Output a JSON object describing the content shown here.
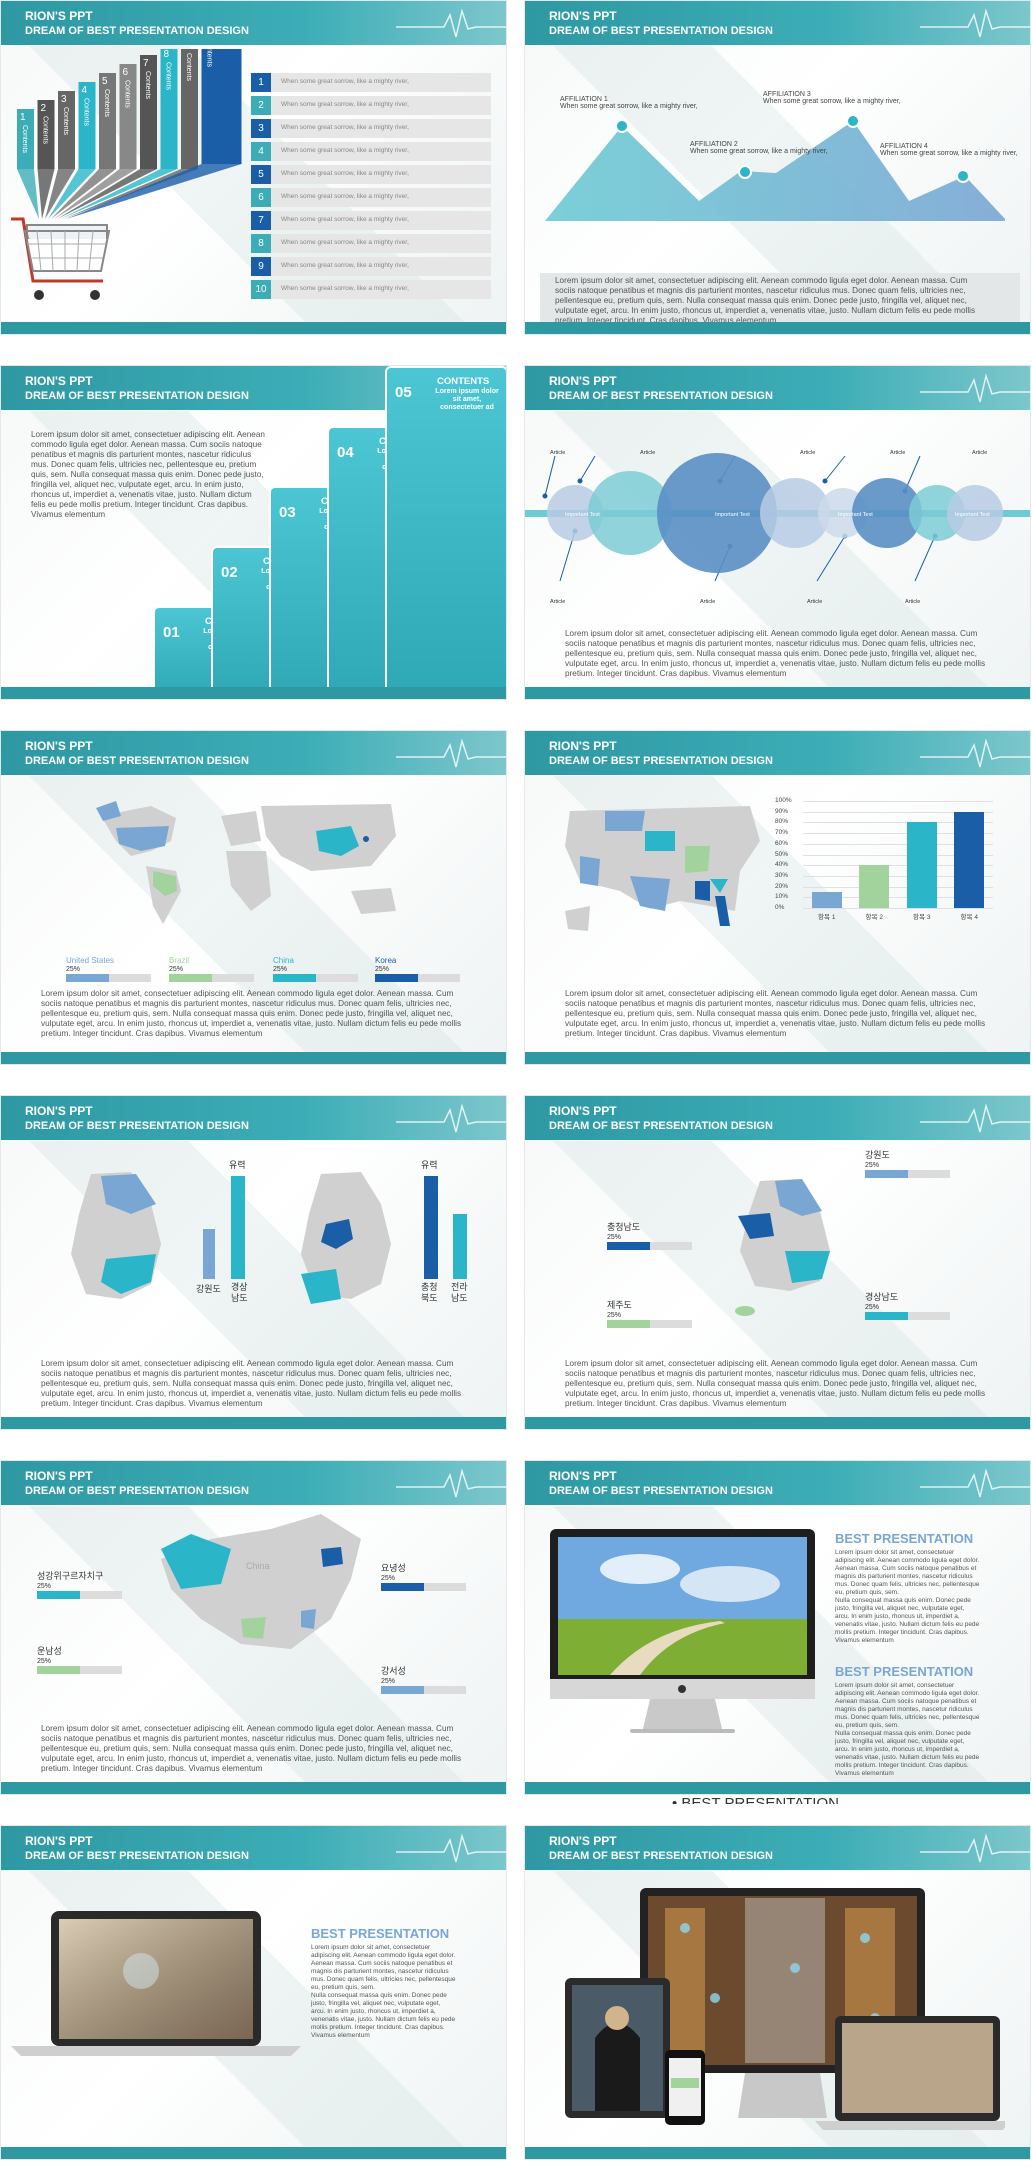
{
  "header": {
    "title": "RION'S PPT",
    "subtitle": "DREAM OF BEST PRESENTATION DESIGN"
  },
  "lorem": {
    "long": "Lorem ipsum dolor sit amet, consectetuer adipiscing elit. Aenean commodo ligula eget dolor. Aenean massa. Cum\nsociis natoque penatibus et magnis dis parturient montes, nascetur ridiculus mus. Donec quam felis, ultricies nec,\npellentesque eu, pretium quis, sem. Nulla consequat massa quis enim. Donec pede justo, fringilla vel, aliquet nec,\nvulputate eget, arcu. In enim justo, rhoncus ut, imperdiet a, venenatis vitae, justo. Nullam dictum felis eu pede mollis\npretium. Integer tincidunt. Cras dapibus. Vivamus elementum",
    "slide3": "Lorem ipsum dolor sit amet, consectetuer adipiscing elit. Aenean\ncommodo ligula eget dolor. Aenean massa. Cum sociis natoque\npenatibus et magnis dis parturient montes, nascetur ridiculus\nmus. Donec quam felis, ultricies nec, pellentesque eu, pretium\nquis, sem. Nulla consequat massa quis enim. Donec pede justo,\nfringilla vel, aliquet nec, vulputate eget, arcu. In enim justo,\nrhoncus ut, imperdiet a, venenatis vitae, justo. Nullam dictum\nfelis eu pede mollis pretium. Integer tincidunt. Cras dapibus.\nVivamus elementum",
    "narrow": "Lorem ipsum dolor sit amet, consectetuer\nadipiscing elit. Aenean commodo ligula eget dolor.\nAenean massa. Cum sociis natoque penatibus et\nmagnis dis parturient montes, nascetur ridiculus\nmus. Donec quam felis, ultricies nec, pellentesque\neu, pretium quis, sem.\nNulla consequat massa quis enim. Donec pede\njusto, fringilla vel, aliquet nec, vulputate eget,\narcu. In enim justo, rhoncus ut, imperdiet a,\nvenenatis vitae, justo. Nullam dictum felis eu pede\nmollis pretium. Integer tincidunt. Cras dapibus.\nVivamus elementum"
  },
  "slide1": {
    "bars": [
      "Contents",
      "Contents",
      "Contents",
      "Contents",
      "Contents",
      "Contents",
      "Contents",
      "Contents",
      "Contents",
      "Contents"
    ],
    "bar_numbers": [
      "1",
      "2",
      "3",
      "4",
      "5",
      "6",
      "7",
      "8",
      "9",
      "10"
    ],
    "rows": [
      "When some great sorrow, like a mighty river,",
      "When some great sorrow, like a mighty river,",
      "When some great sorrow, like a mighty river,",
      "When some great sorrow, like a mighty river,",
      "When some great sorrow, like a mighty river,",
      "When some great sorrow, like a mighty river,",
      "When some great sorrow, like a mighty river,",
      "When some great sorrow, like a mighty river,",
      "When some great sorrow, like a mighty river,",
      "When some great sorrow, like a mighty river,"
    ]
  },
  "slide2": {
    "affiliations": [
      {
        "title": "AFFILIATION 1",
        "text": "When some great sorrow, like a mighty river,"
      },
      {
        "title": "AFFILIATION 2",
        "text": "When some great sorrow, like a mighty river,"
      },
      {
        "title": "AFFILIATION 3",
        "text": "When some great sorrow, like a mighty river,"
      },
      {
        "title": "AFFILIATION 4",
        "text": "When some great sorrow, like a mighty river,"
      }
    ]
  },
  "slide3": {
    "steps": [
      {
        "num": "01",
        "title": "CONTENTS",
        "text": "Lorem ipsum dolor sit amet, consectetuer ad"
      },
      {
        "num": "02",
        "title": "CONTENTS",
        "text": "Lorem ipsum dolor sit amet, consectetuer ad"
      },
      {
        "num": "03",
        "title": "CONTENTS",
        "text": "Lorem ipsum dolor sit amet, consectetuer ad"
      },
      {
        "num": "04",
        "title": "CONTENTS",
        "text": "Lorem ipsum dolor sit amet, consectetuer ad"
      },
      {
        "num": "05",
        "title": "CONTENTS",
        "text": "Lorem ipsum dolor sit amet, consectetuer ad"
      }
    ]
  },
  "slide4": {
    "article": "Article",
    "important": "Important Text"
  },
  "slide5": {
    "countries": [
      {
        "name": "United States",
        "pct": "25%",
        "value": 0.25,
        "color": "#7aa6d4"
      },
      {
        "name": "Brazil",
        "pct": "25%",
        "value": 0.25,
        "color": "#a3d39c"
      },
      {
        "name": "China",
        "pct": "25%",
        "value": 0.25,
        "color": "#2bb5c8"
      },
      {
        "name": "Korea",
        "pct": "25%",
        "value": 0.25,
        "color": "#1a5ea8"
      }
    ]
  },
  "slide6": {
    "chart_data": {
      "type": "bar",
      "categories": [
        "항목 1",
        "항목 2",
        "항목 3",
        "항목 4"
      ],
      "values": [
        15,
        40,
        80,
        90
      ],
      "yticks": [
        "100%",
        "90%",
        "80%",
        "70%",
        "60%",
        "50%",
        "40%",
        "30%",
        "20%",
        "10%",
        "0%"
      ],
      "ylim": [
        0,
        100
      ],
      "colors": [
        "#7aa6d4",
        "#a3d39c",
        "#2bb5c8",
        "#1a5ea8"
      ]
    }
  },
  "slide7": {
    "left": {
      "top": "유력",
      "a": "강원도",
      "b": "경상\n남도"
    },
    "right": {
      "top": "유력",
      "a": "충청\n북도",
      "b": "전라\n남도"
    }
  },
  "slide8": {
    "regions": [
      {
        "name": "강원도",
        "pct": "25%",
        "value": 0.25,
        "color": "#7aa6d4"
      },
      {
        "name": "충청남도",
        "pct": "25%",
        "value": 0.25,
        "color": "#1a5ea8"
      },
      {
        "name": "제주도",
        "pct": "25%",
        "value": 0.25,
        "color": "#a3d39c"
      },
      {
        "name": "경상남도",
        "pct": "25%",
        "value": 0.25,
        "color": "#2bb5c8"
      }
    ]
  },
  "slide9": {
    "china": "China",
    "regions": [
      {
        "name": "성강위구르자치구",
        "pct": "25%",
        "value": 0.25,
        "color": "#2bb5c8"
      },
      {
        "name": "요녕성",
        "pct": "25%",
        "value": 0.25,
        "color": "#1a5ea8"
      },
      {
        "name": "운남성",
        "pct": "25%",
        "value": 0.25,
        "color": "#a3d39c"
      },
      {
        "name": "강서성",
        "pct": "25%",
        "value": 0.25,
        "color": "#7aa6d4"
      }
    ]
  },
  "slide10": {
    "heading": "BEST PRESENTATION",
    "overflow": "• BEST PRESENTATION"
  },
  "slide11": {
    "heading": "BEST PRESENTATION"
  }
}
